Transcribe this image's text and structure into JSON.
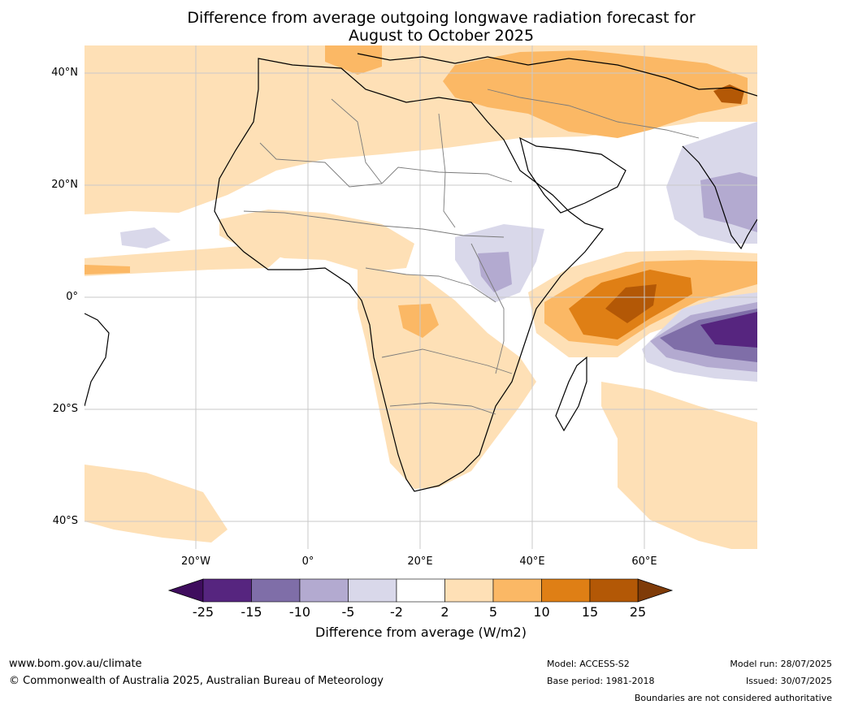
{
  "title_line1": "Difference from average outgoing longwave radiation forecast for",
  "title_line2": "August to October 2025",
  "lat_ticks": [
    "40°N",
    "20°N",
    "0°",
    "20°S",
    "40°S"
  ],
  "lon_ticks": [
    "20°W",
    "0°",
    "20°E",
    "40°E",
    "60°E"
  ],
  "colorbar": {
    "labels": [
      "-25",
      "-15",
      "-10",
      "-5",
      "-2",
      "2",
      "5",
      "10",
      "15",
      "25"
    ],
    "levels": [
      -25,
      -15,
      -10,
      -5,
      -2,
      2,
      5,
      10,
      15,
      25
    ],
    "colors": [
      "#3f0d5e",
      "#56257f",
      "#7f6ea8",
      "#b3aad0",
      "#d9d8ea",
      "#ffffff",
      "#fee0b6",
      "#fbb865",
      "#df7f15",
      "#b35806",
      "#7f3b08"
    ],
    "title": "Difference from average (W/m2)"
  },
  "footer": {
    "url": "www.bom.gov.au/climate",
    "copyright": "© Commonwealth of Australia 2025, Australian Bureau of Meteorology",
    "model": "Model: ACCESS-S2",
    "base_period": "Base period: 1981-2018",
    "model_run": "Model run: 28/07/2025",
    "issued": "Issued: 30/07/2025",
    "disclaimer": "Boundaries are not considered authoritative"
  }
}
